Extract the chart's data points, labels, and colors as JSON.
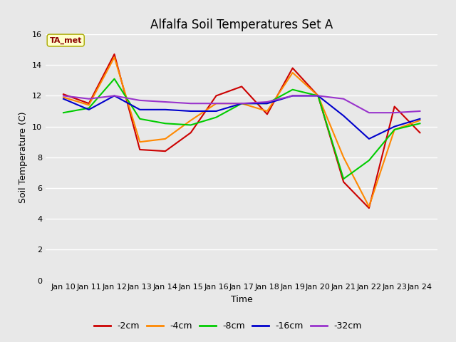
{
  "title": "Alfalfa Soil Temperatures Set A",
  "xlabel": "Time",
  "ylabel": "Soil Temperature (C)",
  "x_labels": [
    "Jan 10",
    "Jan 11",
    "Jan 12",
    "Jan 13",
    "Jan 14",
    "Jan 15",
    "Jan 16",
    "Jan 17",
    "Jan 18",
    "Jan 19",
    "Jan 20",
    "Jan 21",
    "Jan 22",
    "Jan 23",
    "Jan 24"
  ],
  "ylim": [
    0,
    16
  ],
  "yticks": [
    0,
    2,
    4,
    6,
    8,
    10,
    12,
    14,
    16
  ],
  "series": {
    "-2cm": {
      "color": "#cc0000",
      "values": [
        12.1,
        11.5,
        14.7,
        8.5,
        8.4,
        9.6,
        12.0,
        12.6,
        10.8,
        13.8,
        12.0,
        6.4,
        4.7,
        11.3,
        9.6
      ]
    },
    "-4cm": {
      "color": "#ff8800",
      "values": [
        11.9,
        11.4,
        14.5,
        9.0,
        9.2,
        10.4,
        11.5,
        11.5,
        11.0,
        13.5,
        12.0,
        8.0,
        4.8,
        9.8,
        10.4
      ]
    },
    "-8cm": {
      "color": "#00cc00",
      "values": [
        10.9,
        11.2,
        13.1,
        10.5,
        10.2,
        10.1,
        10.6,
        11.5,
        11.5,
        12.4,
        12.0,
        6.6,
        7.8,
        9.8,
        10.2
      ]
    },
    "-16cm": {
      "color": "#0000cc",
      "values": [
        11.8,
        11.1,
        12.0,
        11.1,
        11.1,
        11.0,
        11.0,
        11.5,
        11.5,
        12.0,
        12.0,
        10.7,
        9.2,
        10.0,
        10.5
      ]
    },
    "-32cm": {
      "color": "#9933cc",
      "values": [
        12.0,
        11.8,
        12.0,
        11.7,
        11.6,
        11.5,
        11.5,
        11.5,
        11.6,
        12.0,
        12.0,
        11.8,
        10.9,
        10.9,
        11.0
      ]
    }
  },
  "annotation_text": "TA_met",
  "bg_color": "#e8e8e8",
  "plot_bg_color": "#e8e8e8",
  "grid_color": "#ffffff",
  "line_width": 1.5,
  "title_fontsize": 12,
  "tick_fontsize": 8,
  "label_fontsize": 9
}
